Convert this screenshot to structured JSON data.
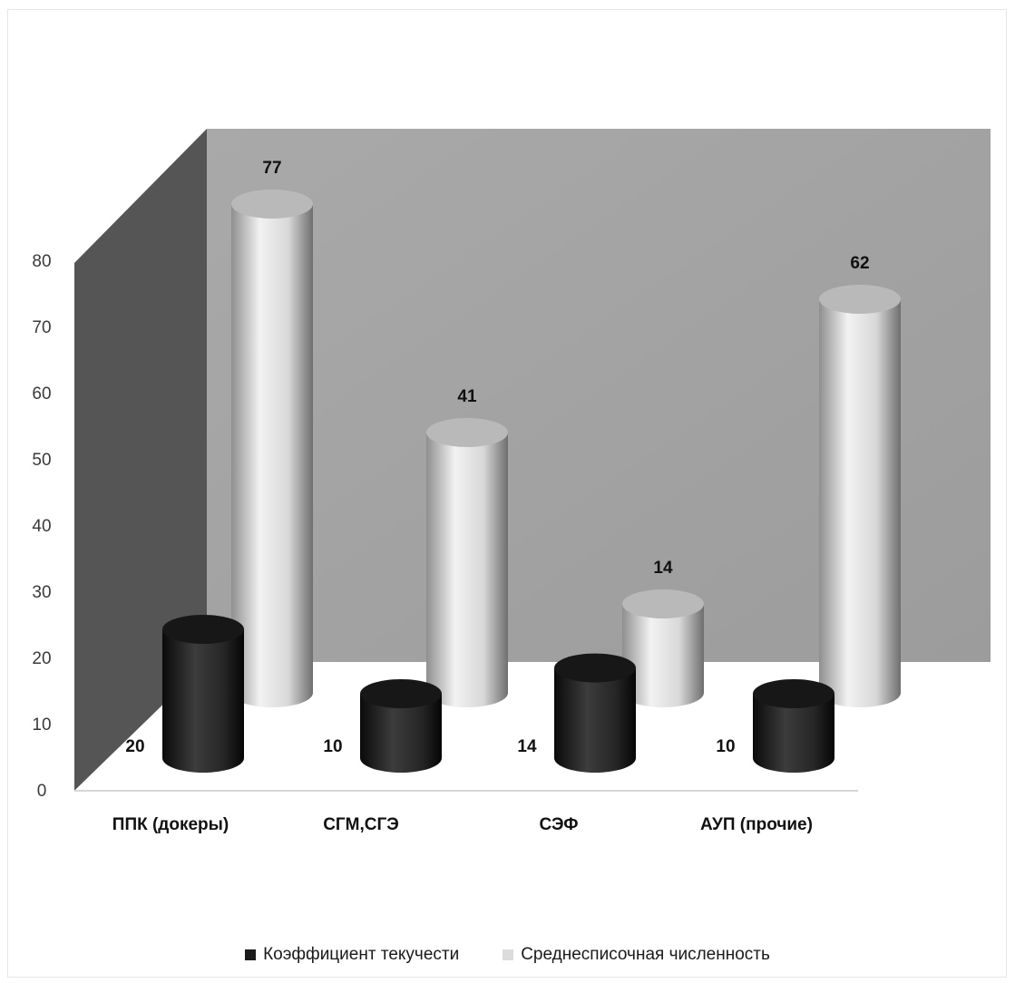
{
  "chart_data": {
    "type": "bar",
    "style": "3d-cylinder",
    "categories": [
      "ППК (докеры)",
      "СГМ,СГЭ",
      "СЭФ",
      "АУП (прочие)"
    ],
    "series": [
      {
        "name": "Коэффициент текучести",
        "values": [
          20,
          10,
          14,
          10
        ],
        "color": "#1c1c1c"
      },
      {
        "name": "Среднесписочная численность",
        "values": [
          77,
          41,
          14,
          62
        ],
        "color": "#dcdcdc"
      }
    ],
    "y_ticks": [
      "0",
      "10",
      "20",
      "30",
      "40",
      "50",
      "60",
      "70",
      "80"
    ],
    "ylim": [
      0,
      80
    ],
    "legend_position": "bottom",
    "colors": {
      "back_wall": "#a6a6a6",
      "side_wall": "#555555",
      "floor": "#ffffff"
    }
  }
}
